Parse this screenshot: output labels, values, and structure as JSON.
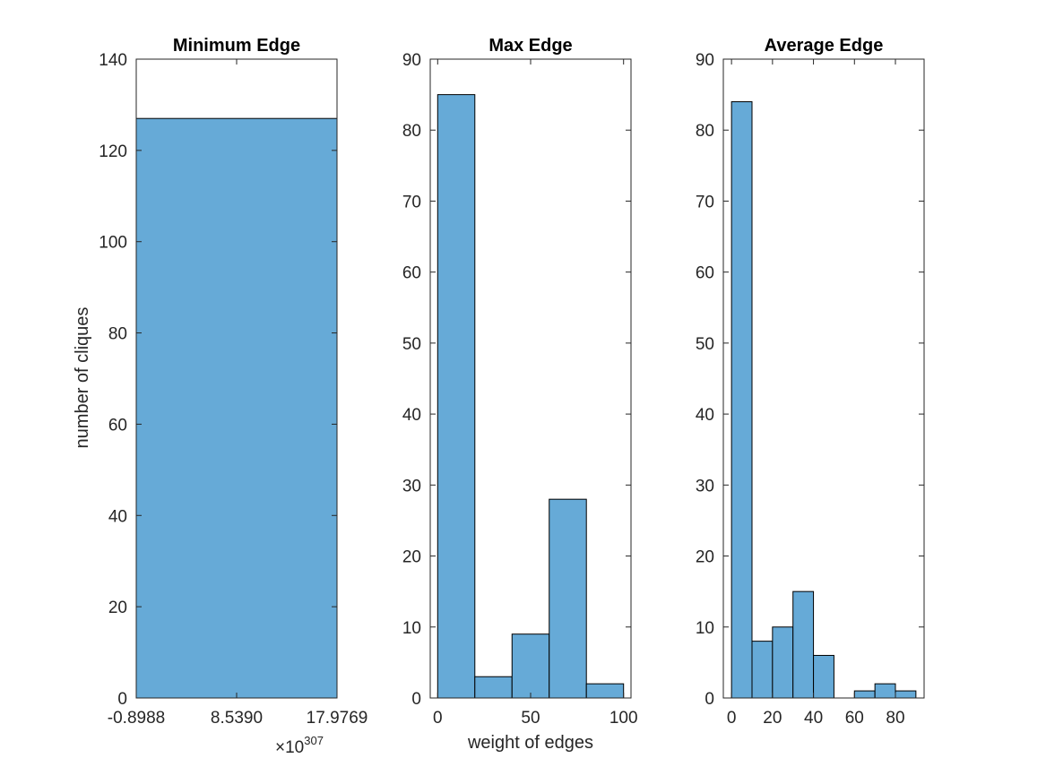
{
  "chart_data": [
    {
      "type": "bar",
      "title": "Minimum Edge",
      "xlabel": "",
      "ylabel": "number of cliques",
      "xlim": [
        -0.8988,
        17.9769
      ],
      "ylim": [
        0,
        140
      ],
      "x_ticks": [
        -0.8988,
        8.539,
        17.9769
      ],
      "x_tick_labels": [
        "-0.8988",
        "8.5390",
        "17.9769"
      ],
      "x_exponent_base": "×10",
      "x_exponent_power": "307",
      "y_ticks": [
        0,
        20,
        40,
        60,
        80,
        100,
        120,
        140
      ],
      "bins": [
        {
          "start": -0.8988,
          "end": 17.9769,
          "count": 127
        }
      ],
      "bar_color": "#66aad7",
      "edge_color": "#000000",
      "grid": false
    },
    {
      "type": "bar",
      "title": "Max Edge",
      "xlabel": "weight of edges",
      "ylabel": "",
      "xlim": [
        -4,
        104
      ],
      "ylim": [
        0,
        90
      ],
      "x_ticks": [
        0,
        50,
        100
      ],
      "x_tick_labels": [
        "0",
        "50",
        "100"
      ],
      "y_ticks": [
        0,
        10,
        20,
        30,
        40,
        50,
        60,
        70,
        80,
        90
      ],
      "bins": [
        {
          "start": 0,
          "end": 20,
          "count": 85
        },
        {
          "start": 20,
          "end": 40,
          "count": 3
        },
        {
          "start": 40,
          "end": 60,
          "count": 9
        },
        {
          "start": 60,
          "end": 80,
          "count": 28
        },
        {
          "start": 80,
          "end": 100,
          "count": 2
        }
      ],
      "bar_color": "#66aad7",
      "edge_color": "#000000",
      "grid": false
    },
    {
      "type": "bar",
      "title": "Average Edge",
      "xlabel": "",
      "ylabel": "",
      "xlim": [
        -4,
        94
      ],
      "ylim": [
        0,
        90
      ],
      "x_ticks": [
        0,
        20,
        40,
        60,
        80
      ],
      "x_tick_labels": [
        "0",
        "20",
        "40",
        "60",
        "80"
      ],
      "y_ticks": [
        0,
        10,
        20,
        30,
        40,
        50,
        60,
        70,
        80,
        90
      ],
      "bins": [
        {
          "start": 0,
          "end": 10,
          "count": 84
        },
        {
          "start": 10,
          "end": 20,
          "count": 8
        },
        {
          "start": 20,
          "end": 30,
          "count": 10
        },
        {
          "start": 30,
          "end": 40,
          "count": 15
        },
        {
          "start": 40,
          "end": 50,
          "count": 6
        },
        {
          "start": 50,
          "end": 60,
          "count": 0
        },
        {
          "start": 60,
          "end": 70,
          "count": 1
        },
        {
          "start": 70,
          "end": 80,
          "count": 2
        },
        {
          "start": 80,
          "end": 90,
          "count": 1
        }
      ],
      "bar_color": "#66aad7",
      "edge_color": "#000000",
      "grid": false
    }
  ]
}
